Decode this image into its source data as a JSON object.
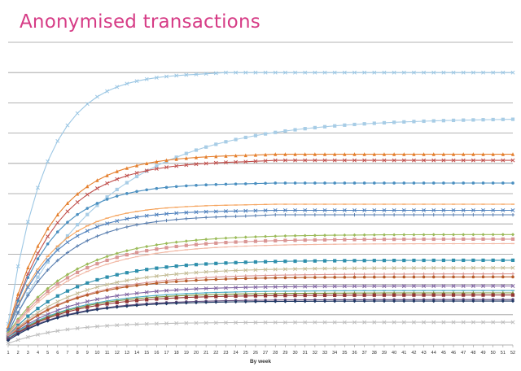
{
  "chart_data": {
    "type": "line",
    "title": "Anonymised transactions",
    "xlabel": "By week",
    "ylabel": "",
    "x": [
      1,
      2,
      3,
      4,
      5,
      6,
      7,
      8,
      9,
      10,
      11,
      12,
      13,
      14,
      15,
      16,
      17,
      18,
      19,
      20,
      21,
      22,
      23,
      24,
      25,
      26,
      27,
      28,
      29,
      30,
      31,
      32,
      33,
      34,
      35,
      36,
      37,
      38,
      39,
      40,
      41,
      42,
      43,
      44,
      45,
      46,
      47,
      48,
      49,
      50,
      51,
      52
    ],
    "xlim": [
      1,
      52
    ],
    "ylim": [
      0,
      10
    ],
    "y_tick_labels_shown": false,
    "grid": true,
    "legend": "none",
    "series": [
      {
        "color": "#9cc7e4",
        "marker": "cross",
        "final": 9.0,
        "start": 0.7,
        "rate": 0.26,
        "sat": 20
      },
      {
        "color": "#a8cde6",
        "marker": "square",
        "final": 7.5,
        "start": 0.4,
        "rate": 0.1,
        "sat": 0
      },
      {
        "color": "#e57f2c",
        "marker": "triangle",
        "final": 6.3,
        "start": 0.6,
        "rate": 0.21,
        "sat": 25
      },
      {
        "color": "#c0504d",
        "marker": "cross",
        "final": 6.1,
        "start": 0.5,
        "rate": 0.2,
        "sat": 25
      },
      {
        "color": "#4a8fc0",
        "marker": "dot",
        "final": 5.35,
        "start": 0.5,
        "rate": 0.22,
        "sat": 25
      },
      {
        "color": "#f5a35c",
        "marker": "dash",
        "final": 4.65,
        "start": 0.5,
        "rate": 0.22,
        "sat": 25
      },
      {
        "color": "#4f81bd",
        "marker": "cross",
        "final": 4.45,
        "start": 0.5,
        "rate": 0.22,
        "sat": 25
      },
      {
        "color": "#5a7fb0",
        "marker": "plus",
        "final": 4.3,
        "start": 0.4,
        "rate": 0.19,
        "sat": 25
      },
      {
        "color": "#9bbb59",
        "marker": "diamond",
        "final": 3.65,
        "start": 0.4,
        "rate": 0.15,
        "sat": 0
      },
      {
        "color": "#da9694",
        "marker": "square",
        "final": 3.5,
        "start": 0.35,
        "rate": 0.15,
        "sat": 0
      },
      {
        "color": "#f2b8a4",
        "marker": "dash",
        "final": 3.35,
        "start": 0.3,
        "rate": 0.15,
        "sat": 0
      },
      {
        "color": "#2e8fac",
        "marker": "square",
        "final": 2.8,
        "start": 0.3,
        "rate": 0.15,
        "sat": 0
      },
      {
        "color": "#c4bd97",
        "marker": "cross",
        "final": 2.55,
        "start": 0.3,
        "rate": 0.14,
        "sat": 0
      },
      {
        "color": "#d99694",
        "marker": "plus",
        "final": 2.35,
        "start": 0.3,
        "rate": 0.14,
        "sat": 0
      },
      {
        "color": "#b85c2a",
        "marker": "dot",
        "final": 2.25,
        "start": 0.25,
        "rate": 0.15,
        "sat": 0
      },
      {
        "color": "#8064a2",
        "marker": "cross",
        "final": 1.95,
        "start": 0.25,
        "rate": 0.15,
        "sat": 0
      },
      {
        "color": "#4bacc6",
        "marker": "dash",
        "final": 1.8,
        "start": 0.25,
        "rate": 0.15,
        "sat": 0
      },
      {
        "color": "#77933c",
        "marker": "triangle",
        "final": 1.72,
        "start": 0.2,
        "rate": 0.16,
        "sat": 0
      },
      {
        "color": "#953735",
        "marker": "square",
        "final": 1.65,
        "start": 0.2,
        "rate": 0.16,
        "sat": 0
      },
      {
        "color": "#5f497a",
        "marker": "dot",
        "final": 1.5,
        "start": 0.2,
        "rate": 0.16,
        "sat": 0
      },
      {
        "color": "#1f3864",
        "marker": "diamond",
        "final": 1.45,
        "start": 0.15,
        "rate": 0.17,
        "sat": 0
      },
      {
        "color": "#bfbfbf",
        "marker": "cross",
        "final": 0.75,
        "start": 0.05,
        "rate": 0.18,
        "sat": 0
      }
    ]
  }
}
